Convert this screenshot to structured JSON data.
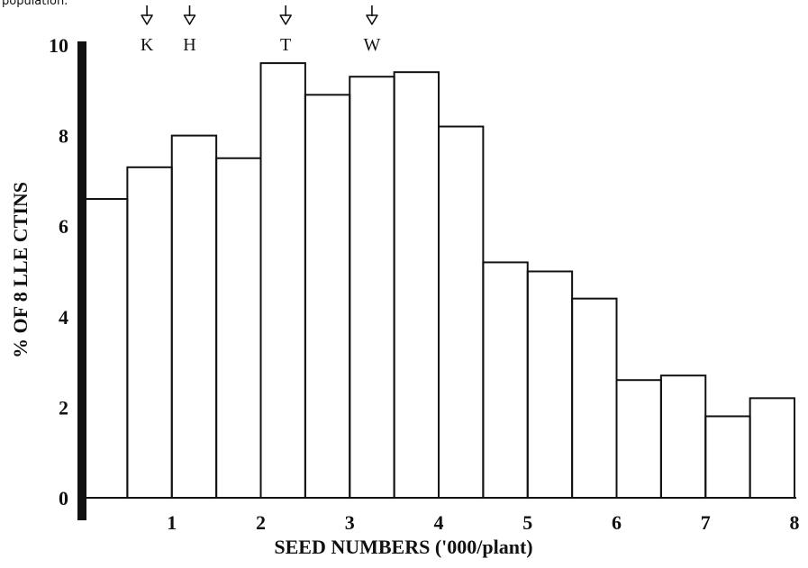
{
  "caption_fragment": "population.",
  "chart_data": {
    "type": "bar",
    "xlabel": "SEED NUMBERS ('000/plant)",
    "ylabel": "% OF 8 LLE CTINS",
    "xlim": [
      0,
      8
    ],
    "ylim": [
      0,
      10
    ],
    "x_ticks": [
      1,
      2,
      3,
      4,
      5,
      6,
      7,
      8
    ],
    "y_ticks": [
      0,
      2,
      4,
      6,
      8,
      10
    ],
    "bin_width": 0.5,
    "bins": [
      {
        "start": 0.0,
        "end": 0.5,
        "value": 6.6
      },
      {
        "start": 0.5,
        "end": 1.0,
        "value": 7.3
      },
      {
        "start": 1.0,
        "end": 1.5,
        "value": 8.0
      },
      {
        "start": 1.5,
        "end": 2.0,
        "value": 7.5
      },
      {
        "start": 2.0,
        "end": 2.5,
        "value": 9.6
      },
      {
        "start": 2.5,
        "end": 3.0,
        "value": 8.9
      },
      {
        "start": 3.0,
        "end": 3.5,
        "value": 9.3
      },
      {
        "start": 3.5,
        "end": 4.0,
        "value": 9.4
      },
      {
        "start": 4.0,
        "end": 4.5,
        "value": 8.2
      },
      {
        "start": 4.5,
        "end": 5.0,
        "value": 5.2
      },
      {
        "start": 5.0,
        "end": 5.5,
        "value": 5.0
      },
      {
        "start": 5.5,
        "end": 6.0,
        "value": 4.4
      },
      {
        "start": 6.0,
        "end": 6.5,
        "value": 2.6
      },
      {
        "start": 6.5,
        "end": 7.0,
        "value": 2.7
      },
      {
        "start": 7.0,
        "end": 7.5,
        "value": 1.8
      },
      {
        "start": 7.5,
        "end": 8.0,
        "value": 2.2
      }
    ],
    "markers": [
      {
        "label": "K",
        "x": 0.72
      },
      {
        "label": "H",
        "x": 1.2
      },
      {
        "label": "T",
        "x": 2.28
      },
      {
        "label": "W",
        "x": 3.25
      }
    ],
    "grid": false,
    "legend": "none"
  }
}
